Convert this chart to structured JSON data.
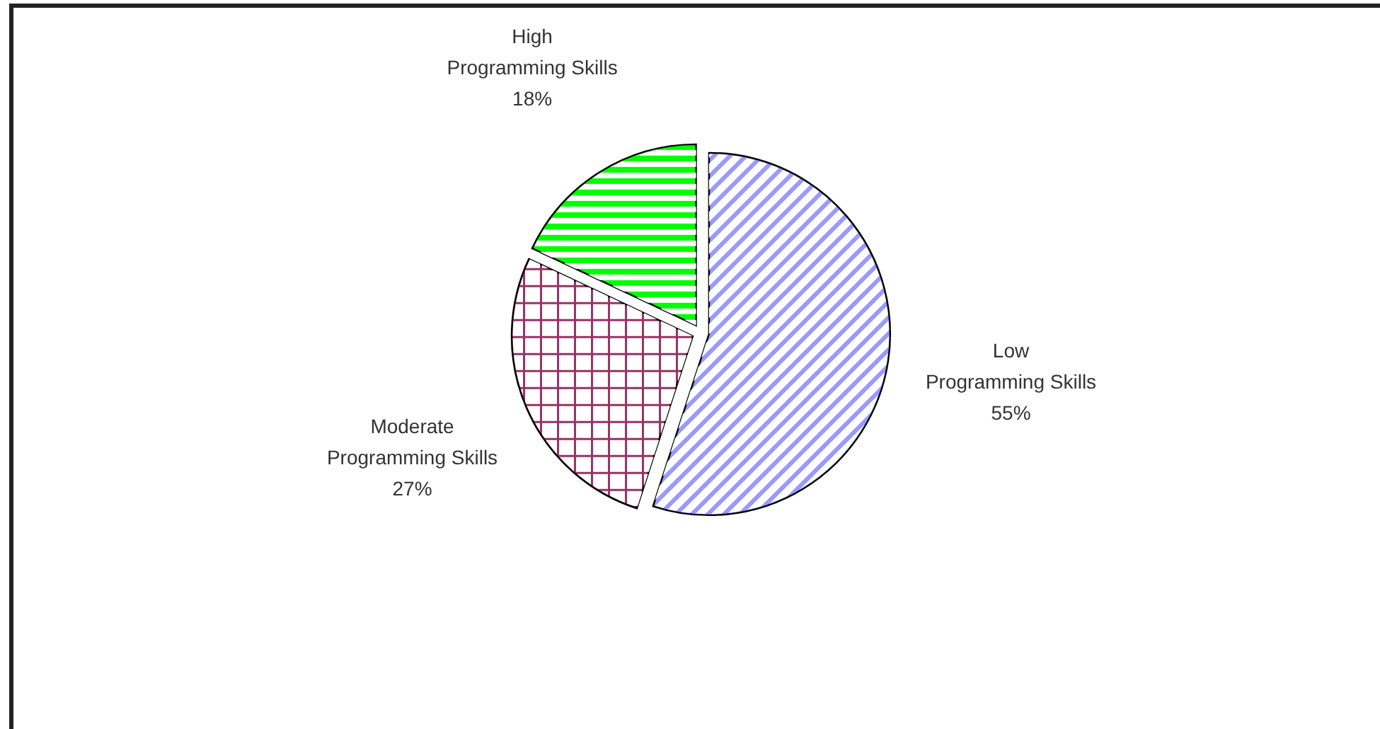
{
  "chart_data": {
    "type": "pie",
    "categories": [
      "Low Programming Skills",
      "Moderate Programming Skills",
      "High Programming Skills"
    ],
    "values": [
      55,
      27,
      18
    ],
    "colors": [
      "#9999ff",
      "#993366",
      "#00ff00"
    ],
    "value_labels": [
      "55%",
      "27%",
      "18%"
    ]
  }
}
